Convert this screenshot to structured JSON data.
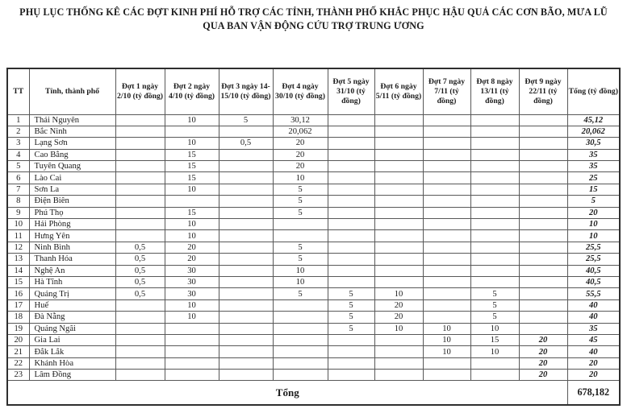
{
  "title": {
    "line1": "PHỤ LỤC THỐNG KÊ CÁC ĐỢT KINH PHÍ HỖ TRỢ CÁC TỈNH, THÀNH PHỐ KHẮC PHỤC HẬU QUẢ CÁC CƠN BÃO, MƯA LŨ",
    "line2": "QUA BAN VẬN ĐỘNG CỨU TRỢ TRUNG ƯƠNG"
  },
  "table": {
    "columns": [
      "TT",
      "Tỉnh, thành phố",
      "Đợt 1 ngày 2/10 (tỷ đồng)",
      "Đợt 2 ngày 4/10 (tỷ đồng)",
      "Đợt 3 ngày 14-15/10 (tỷ đồng)",
      "Đợt 4 ngày 30/10 (tỷ đồng)",
      "Đợt 5 ngày 31/10 (tỷ đồng)",
      "Đợt 6 ngày 5/11 (tỷ đồng)",
      "Đợt 7 ngày 7/11 (tỷ đồng)",
      "Đợt 8 ngày 13/11 (tỷ đồng)",
      "Đợt 9 ngày 22/11 (tỷ đồng)",
      "Tổng (tỷ đồng)"
    ],
    "rows": [
      {
        "tt": "1",
        "province": "Thái Nguyên",
        "values": [
          "",
          "10",
          "5",
          "30,12",
          "",
          "",
          "",
          "",
          ""
        ],
        "total": "45,12"
      },
      {
        "tt": "2",
        "province": "Bắc Ninh",
        "values": [
          "",
          "",
          "",
          "20,062",
          "",
          "",
          "",
          "",
          ""
        ],
        "total": "20,062"
      },
      {
        "tt": "3",
        "province": "Lạng Sơn",
        "values": [
          "",
          "10",
          "0,5",
          "20",
          "",
          "",
          "",
          "",
          ""
        ],
        "total": "30,5"
      },
      {
        "tt": "4",
        "province": "Cao Bằng",
        "values": [
          "",
          "15",
          "",
          "20",
          "",
          "",
          "",
          "",
          ""
        ],
        "total": "35"
      },
      {
        "tt": "5",
        "province": "Tuyên Quang",
        "values": [
          "",
          "15",
          "",
          "20",
          "",
          "",
          "",
          "",
          ""
        ],
        "total": "35"
      },
      {
        "tt": "6",
        "province": "Lào Cai",
        "values": [
          "",
          "15",
          "",
          "10",
          "",
          "",
          "",
          "",
          ""
        ],
        "total": "25"
      },
      {
        "tt": "7",
        "province": "Sơn La",
        "values": [
          "",
          "10",
          "",
          "5",
          "",
          "",
          "",
          "",
          ""
        ],
        "total": "15"
      },
      {
        "tt": "8",
        "province": "Điện Biên",
        "values": [
          "",
          "",
          "",
          "5",
          "",
          "",
          "",
          "",
          ""
        ],
        "total": "5"
      },
      {
        "tt": "9",
        "province": "Phú Thọ",
        "values": [
          "",
          "15",
          "",
          "5",
          "",
          "",
          "",
          "",
          ""
        ],
        "total": "20"
      },
      {
        "tt": "10",
        "province": "Hải Phòng",
        "values": [
          "",
          "10",
          "",
          "",
          "",
          "",
          "",
          "",
          ""
        ],
        "total": "10"
      },
      {
        "tt": "11",
        "province": "Hưng Yên",
        "values": [
          "",
          "10",
          "",
          "",
          "",
          "",
          "",
          "",
          ""
        ],
        "total": "10"
      },
      {
        "tt": "12",
        "province": "Ninh Bình",
        "values": [
          "0,5",
          "20",
          "",
          "5",
          "",
          "",
          "",
          "",
          ""
        ],
        "total": "25,5"
      },
      {
        "tt": "13",
        "province": "Thanh Hóa",
        "values": [
          "0,5",
          "20",
          "",
          "5",
          "",
          "",
          "",
          "",
          ""
        ],
        "total": "25,5"
      },
      {
        "tt": "14",
        "province": "Nghệ An",
        "values": [
          "0,5",
          "30",
          "",
          "10",
          "",
          "",
          "",
          "",
          ""
        ],
        "total": "40,5"
      },
      {
        "tt": "15",
        "province": "Hà Tĩnh",
        "values": [
          "0,5",
          "30",
          "",
          "10",
          "",
          "",
          "",
          "",
          ""
        ],
        "total": "40,5"
      },
      {
        "tt": "16",
        "province": "Quảng Trị",
        "values": [
          "0,5",
          "30",
          "",
          "5",
          "5",
          "10",
          "",
          "5",
          ""
        ],
        "total": "55,5"
      },
      {
        "tt": "17",
        "province": "Huế",
        "values": [
          "",
          "10",
          "",
          "",
          "5",
          "20",
          "",
          "5",
          ""
        ],
        "total": "40"
      },
      {
        "tt": "18",
        "province": "Đà Nẵng",
        "values": [
          "",
          "10",
          "",
          "",
          "5",
          "20",
          "",
          "5",
          ""
        ],
        "total": "40"
      },
      {
        "tt": "19",
        "province": "Quảng Ngãi",
        "values": [
          "",
          "",
          "",
          "",
          "5",
          "10",
          "10",
          "10",
          ""
        ],
        "total": "35"
      },
      {
        "tt": "20",
        "province": "Gia Lai",
        "values": [
          "",
          "",
          "",
          "",
          "",
          "",
          "10",
          "15",
          "20"
        ],
        "total": "45"
      },
      {
        "tt": "21",
        "province": "Đắk Lắk",
        "values": [
          "",
          "",
          "",
          "",
          "",
          "",
          "10",
          "10",
          "20"
        ],
        "total": "40"
      },
      {
        "tt": "22",
        "province": "Khánh Hòa",
        "values": [
          "",
          "",
          "",
          "",
          "",
          "",
          "",
          "",
          "20"
        ],
        "total": "20"
      },
      {
        "tt": "23",
        "province": "Lâm Đồng",
        "values": [
          "",
          "",
          "",
          "",
          "",
          "",
          "",
          "",
          "20"
        ],
        "total": "20"
      }
    ],
    "footer": {
      "label": "Tổng",
      "total": "678,182"
    }
  }
}
